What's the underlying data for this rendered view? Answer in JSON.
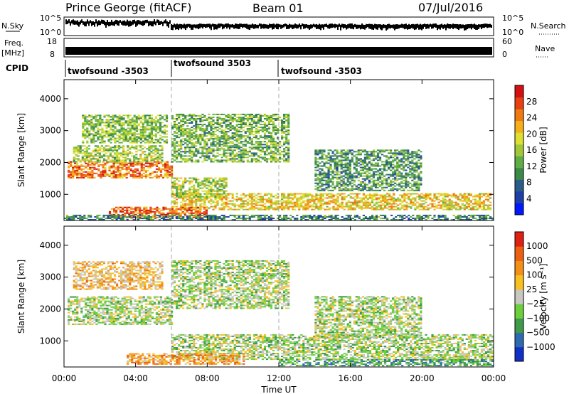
{
  "header": {
    "station": "Prince George (fitACF)",
    "beam": "Beam 01",
    "date": "07/Jul/2016"
  },
  "top_panels": {
    "nsky_label": "N.Sky",
    "nsky_ticks": [
      "10^5",
      "10^0"
    ],
    "nsearch_label": "N.Search",
    "nsearch_ticks": [
      "10^5",
      "10^0"
    ],
    "freq_label_1": "Freq.",
    "freq_label_2": "[MHz]",
    "freq_ticks": [
      "18",
      "8"
    ],
    "nave_label": "Nave",
    "nave_ticks": [
      "60",
      "0"
    ],
    "cpid_label": "CPID",
    "cpid_segments": [
      {
        "label": "twofsound -3503",
        "start_hour": 0,
        "end_hour": 6
      },
      {
        "label": "twofsound 3503",
        "start_hour": 6,
        "end_hour": 12
      },
      {
        "label": "twofsound -3503",
        "start_hour": 12,
        "end_hour": 24
      }
    ]
  },
  "chart_data": [
    {
      "type": "heatmap",
      "title": "",
      "xlabel": "Time UT",
      "ylabel": "Slant Range [km]",
      "xlim": [
        0,
        24
      ],
      "ylim": [
        180,
        4600
      ],
      "yticks": [
        1000,
        2000,
        3000,
        4000
      ],
      "x_tick_labels": [
        "00:00",
        "04:00",
        "08:00",
        "12:00",
        "16:00",
        "20:00",
        "00:00"
      ],
      "colorbar": {
        "label": "Power [dB]",
        "ticks": [
          "4",
          "8",
          "12",
          "16",
          "20",
          "24",
          "28"
        ],
        "colors": [
          "#0018ff",
          "#1f3fa8",
          "#2a5c8a",
          "#3b8a4a",
          "#5fae44",
          "#a2c83a",
          "#dde030",
          "#f5b018",
          "#f07a10",
          "#e84010",
          "#d41010"
        ]
      },
      "bands": [
        {
          "t0": 0.2,
          "t1": 6.0,
          "r0": 1500,
          "r1": 2000,
          "level": 0.78
        },
        {
          "t0": 0.5,
          "t1": 5.5,
          "r0": 2000,
          "r1": 2500,
          "level": 0.5
        },
        {
          "t0": 1.0,
          "t1": 5.8,
          "r0": 2600,
          "r1": 3500,
          "level": 0.45
        },
        {
          "t0": 6.0,
          "t1": 12.5,
          "r0": 2000,
          "r1": 3500,
          "level": 0.42
        },
        {
          "t0": 6.0,
          "t1": 23.8,
          "r0": 500,
          "r1": 1000,
          "level": 0.62
        },
        {
          "t0": 2.5,
          "t1": 8.0,
          "r0": 250,
          "r1": 600,
          "level": 0.82
        },
        {
          "t0": 14.0,
          "t1": 20.0,
          "r0": 1100,
          "r1": 2400,
          "level": 0.35
        },
        {
          "t0": 6.0,
          "t1": 9.0,
          "r0": 900,
          "r1": 1500,
          "level": 0.5
        },
        {
          "t0": 0.0,
          "t1": 24.0,
          "r0": 180,
          "r1": 350,
          "level": 0.3
        }
      ]
    },
    {
      "type": "heatmap",
      "title": "",
      "xlabel": "Time UT",
      "ylabel": "Slant Range [km]",
      "xlim": [
        0,
        24
      ],
      "ylim": [
        180,
        4600
      ],
      "yticks": [
        1000,
        2000,
        3000,
        4000
      ],
      "x_tick_labels": [
        "00:00",
        "04:00",
        "08:00",
        "12:00",
        "16:00",
        "20:00",
        "00:00"
      ],
      "colorbar": {
        "label": "Velocity [m s⁻¹]",
        "ticks": [
          "1000",
          "500",
          "100",
          "25",
          "−25",
          "−100",
          "−500",
          "−1000"
        ],
        "colors": [
          "#1030c8",
          "#2f6ab0",
          "#3f9a4a",
          "#6ccf3c",
          "#c8c8c0",
          "#f8c020",
          "#f49018",
          "#ee6010",
          "#e02010"
        ]
      },
      "bands": [
        {
          "t0": 0.2,
          "t1": 6.0,
          "r0": 1500,
          "r1": 2400,
          "level": 0.45
        },
        {
          "t0": 6.0,
          "t1": 12.5,
          "r0": 2000,
          "r1": 3500,
          "level": 0.45
        },
        {
          "t0": 6.0,
          "t1": 24.0,
          "r0": 400,
          "r1": 1200,
          "level": 0.45
        },
        {
          "t0": 3.5,
          "t1": 10.0,
          "r0": 250,
          "r1": 600,
          "level": 0.7
        },
        {
          "t0": 14.0,
          "t1": 20.0,
          "r0": 1100,
          "r1": 2400,
          "level": 0.45
        },
        {
          "t0": 0.5,
          "t1": 5.5,
          "r0": 2600,
          "r1": 3500,
          "level": 0.62
        },
        {
          "t0": 12.0,
          "t1": 24.0,
          "r0": 200,
          "r1": 400,
          "level": 0.3
        }
      ]
    }
  ]
}
